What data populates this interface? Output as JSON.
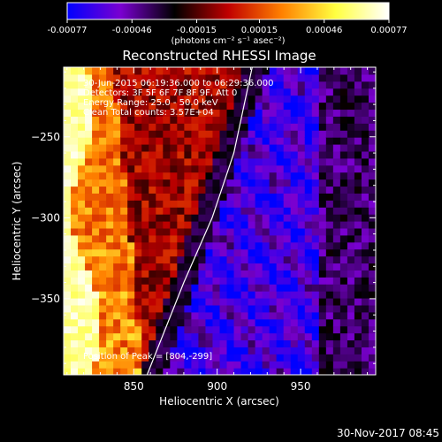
{
  "chart_data": {
    "type": "heatmap",
    "title": "Reconstructed RHESSI Image",
    "xlabel": "Heliocentric X (arcsec)",
    "ylabel": "Heliocentric Y (arcsec)",
    "xlim": [
      808,
      995
    ],
    "ylim": [
      -397,
      -207
    ],
    "x_ticks": [
      850,
      900,
      950
    ],
    "y_ticks": [
      -250,
      -300,
      -350
    ],
    "colorbar": {
      "min": -0.00077,
      "max": 0.00077,
      "ticks": [
        -0.00077,
        -0.00046,
        -0.00015,
        0.00015,
        0.00046,
        0.00077
      ],
      "tick_labels": [
        "-0.00077",
        "-0.00046",
        "-0.00015",
        "0.00015",
        "0.00046",
        "0.00077"
      ],
      "units": "(photons cm⁻² s⁻¹ asec⁻²)",
      "colormap": [
        "#0000ff",
        "#7a00d0",
        "#000000",
        "#c00000",
        "#ff8000",
        "#ffff40",
        "#ffffff"
      ]
    },
    "annotations": [
      "30-Jun-2015 06:19:36.000 to 06:29:36.000",
      "Detectors: 3F 5F 6F 7F 8F 9F, Att 0",
      "Energy Range: 25.0 - 50.0 keV",
      "Clean    Total counts: 3.57E+04"
    ],
    "peak": {
      "label": "Position of Peak = [804,-299]",
      "x": 804,
      "y": -299
    },
    "limb_curve": [
      [
        858,
        -397
      ],
      [
        880,
        -340
      ],
      [
        897,
        -300
      ],
      [
        910,
        -260
      ],
      [
        921,
        -207
      ]
    ],
    "image_regions": [
      {
        "x_range": [
          808,
          825
        ],
        "value_range": [
          0.0006,
          0.00077
        ]
      },
      {
        "x_range": [
          825,
          870
        ],
        "value_range": [
          0.0001,
          0.0006
        ]
      },
      {
        "x_range": [
          870,
          905
        ],
        "value_range": [
          -0.0003,
          0.0
        ]
      },
      {
        "x_range": [
          905,
          960
        ],
        "value_range": [
          -0.00077,
          -0.0004
        ]
      },
      {
        "x_range": [
          960,
          995
        ],
        "value_range": [
          -0.0005,
          -0.0002
        ]
      }
    ]
  },
  "footer": {
    "date": "30-Nov-2017 08:45"
  }
}
